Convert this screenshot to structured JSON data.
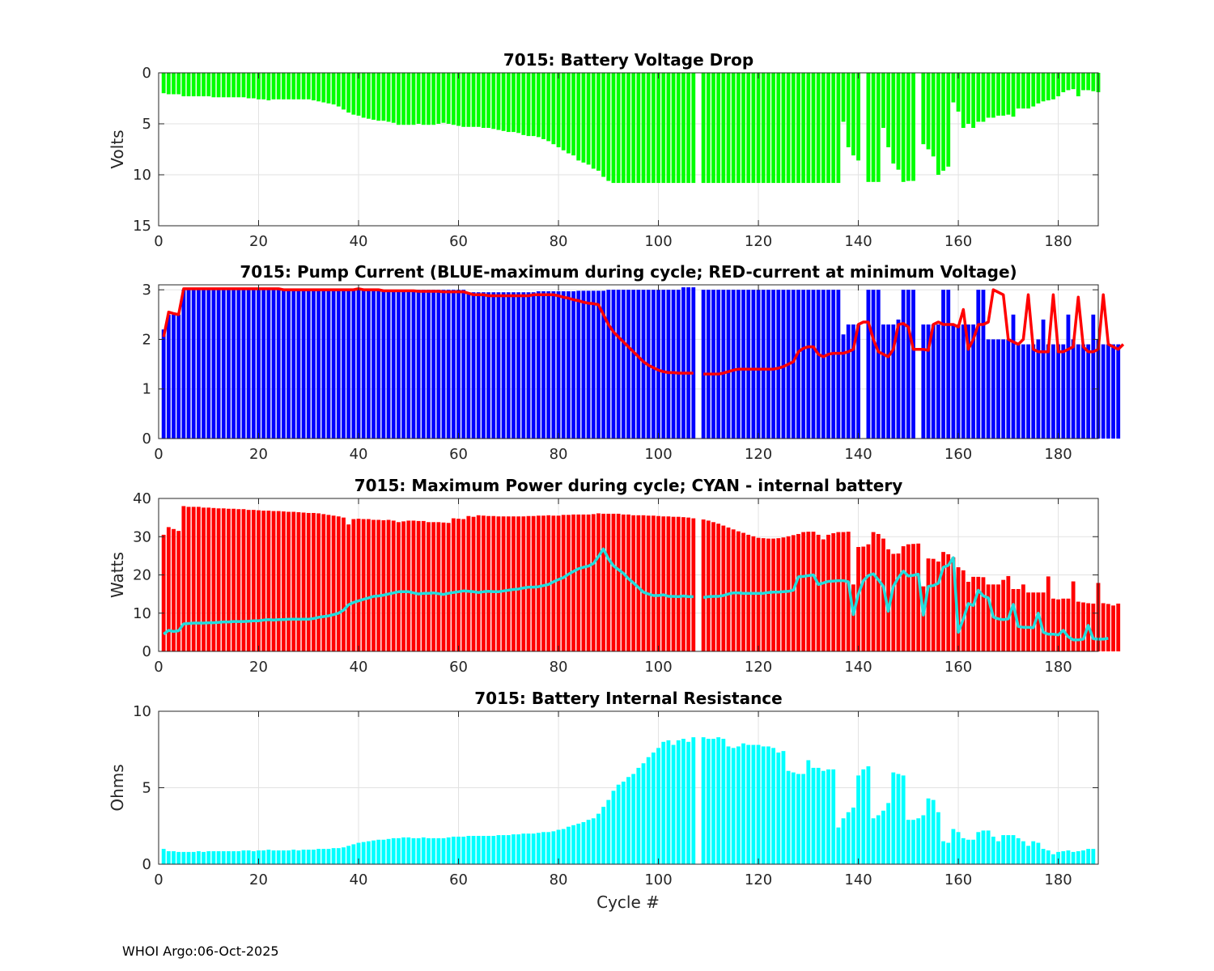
{
  "footer": "WHOI Argo:06-Oct-2025",
  "xlabel": "Cycle #",
  "colors": {
    "green": "#00ff00",
    "blue": "#0000ff",
    "red": "#ff0000",
    "cyan": "#00ffff",
    "line_cyan": "#22dddd"
  },
  "chart_data": [
    {
      "type": "bar",
      "title": "7015: Battery Voltage Drop",
      "ylabel": "Volts",
      "reversed_y": true,
      "xlim": [
        0,
        188
      ],
      "ylim": [
        0,
        15
      ],
      "xticks": [
        0,
        20,
        40,
        60,
        80,
        100,
        120,
        140,
        160,
        180
      ],
      "yticks": [
        0,
        5,
        10,
        15
      ],
      "x_first": 1,
      "color": "#00ff00",
      "values": [
        2.0,
        2.1,
        2.1,
        2.1,
        2.3,
        2.3,
        2.3,
        2.3,
        2.3,
        2.3,
        2.4,
        2.4,
        2.4,
        2.4,
        2.4,
        2.4,
        2.4,
        2.5,
        2.5,
        2.6,
        2.6,
        2.7,
        2.6,
        2.6,
        2.6,
        2.6,
        2.6,
        2.6,
        2.6,
        2.6,
        2.7,
        2.8,
        2.9,
        3.0,
        3.1,
        3.3,
        3.6,
        3.9,
        4.1,
        4.2,
        4.4,
        4.5,
        4.6,
        4.7,
        4.7,
        4.8,
        4.9,
        5.1,
        5.1,
        5.1,
        5.1,
        5.0,
        5.1,
        5.1,
        5.1,
        5.0,
        4.9,
        5.0,
        5.1,
        5.2,
        5.3,
        5.3,
        5.3,
        5.3,
        5.4,
        5.4,
        5.5,
        5.6,
        5.7,
        5.8,
        5.8,
        5.9,
        6.1,
        6.2,
        6.2,
        6.3,
        6.5,
        6.7,
        7.0,
        7.3,
        7.6,
        7.9,
        8.1,
        8.6,
        8.8,
        9.0,
        9.4,
        9.6,
        10.2,
        10.6,
        10.8,
        10.8,
        10.8,
        10.8,
        10.8,
        10.8,
        10.8,
        10.8,
        10.8,
        10.8,
        10.8,
        10.8,
        10.8,
        10.8,
        10.8,
        10.8,
        10.8,
        null,
        10.8,
        10.8,
        10.8,
        10.8,
        10.8,
        10.8,
        10.8,
        10.8,
        10.8,
        10.8,
        10.8,
        10.8,
        10.8,
        10.8,
        10.8,
        10.8,
        10.8,
        10.8,
        10.8,
        10.8,
        10.8,
        10.8,
        10.8,
        10.8,
        10.8,
        10.8,
        10.8,
        10.8,
        4.8,
        7.3,
        8.1,
        8.6,
        0,
        10.7,
        10.7,
        10.7,
        5.4,
        7.3,
        8.9,
        9.5,
        10.7,
        10.6,
        10.6,
        0,
        7.0,
        7.5,
        8.2,
        10.0,
        9.6,
        9.2,
        2.9,
        3.8,
        5.4,
        5.0,
        5.4,
        4.8,
        4.8,
        4.4,
        4.4,
        4.2,
        4.2,
        4.1,
        4.3,
        3.5,
        3.5,
        3.5,
        3.3,
        3.0,
        2.8,
        2.7,
        2.6,
        2.3,
        1.9,
        1.7,
        1.6,
        2.3,
        1.7,
        1.7,
        1.8,
        1.9
      ]
    },
    {
      "type": "bar+line",
      "title": "7015: Pump Current (BLUE-maximum during cycle; RED-current at minimum Voltage)",
      "ylabel": "",
      "xlim": [
        0,
        188
      ],
      "ylim": [
        0,
        3.1
      ],
      "xticks": [
        0,
        20,
        40,
        60,
        80,
        100,
        120,
        140,
        160,
        180
      ],
      "yticks": [
        0,
        1,
        2,
        3
      ],
      "x_first": 1,
      "bar_color": "#0000ff",
      "line_color": "#ff0000",
      "bar_name": "maximum during cycle",
      "line_name": "current at minimum Voltage",
      "values": [
        2.2,
        2.5,
        2.5,
        2.5,
        3.0,
        3.0,
        3.0,
        3.0,
        3.0,
        3.0,
        3.0,
        3.0,
        3.0,
        3.0,
        3.0,
        3.0,
        3.0,
        3.0,
        3.0,
        3.0,
        3.0,
        3.0,
        3.0,
        3.0,
        3.0,
        3.0,
        3.0,
        3.0,
        3.0,
        3.0,
        3.0,
        3.0,
        3.0,
        3.0,
        3.0,
        3.0,
        3.0,
        3.0,
        3.0,
        3.0,
        3.0,
        3.0,
        3.0,
        3.0,
        3.0,
        3.0,
        3.0,
        3.0,
        3.0,
        3.0,
        3.0,
        3.0,
        3.0,
        3.0,
        3.0,
        3.0,
        3.0,
        3.0,
        3.0,
        3.0,
        3.0,
        2.95,
        2.95,
        2.95,
        2.95,
        2.95,
        2.95,
        2.95,
        2.95,
        2.95,
        2.95,
        2.95,
        2.95,
        2.95,
        2.95,
        2.97,
        2.97,
        2.97,
        2.97,
        2.97,
        2.97,
        2.97,
        2.97,
        2.98,
        2.98,
        2.98,
        2.98,
        2.98,
        2.98,
        3.0,
        3.0,
        3.0,
        3.0,
        3.0,
        3.0,
        3.0,
        3.0,
        3.0,
        3.0,
        3.0,
        3.0,
        3.0,
        3.0,
        3.0,
        3.05,
        3.05,
        3.05,
        null,
        3.0,
        3.0,
        3.0,
        3.0,
        3.0,
        3.0,
        3.0,
        3.0,
        3.0,
        3.0,
        3.0,
        3.0,
        3.0,
        3.0,
        3.0,
        3.0,
        3.0,
        3.0,
        3.0,
        3.0,
        3.0,
        3.0,
        3.0,
        3.0,
        3.0,
        3.0,
        3.0,
        3.0,
        2.1,
        2.3,
        2.3,
        2.3,
        0,
        3.0,
        3.0,
        3.0,
        2.3,
        2.3,
        2.3,
        2.4,
        3.0,
        3.0,
        3.0,
        0,
        2.3,
        2.3,
        2.3,
        2.3,
        3.0,
        3.0,
        2.3,
        2.3,
        2.3,
        2.3,
        2.3,
        3.0,
        3.0,
        2.0,
        2.0,
        2.0,
        2.0,
        2.0,
        2.5,
        1.9,
        1.9,
        1.9,
        1.9,
        2.0,
        2.4,
        1.9,
        1.9,
        1.9,
        1.9,
        2.5,
        2.0,
        1.9,
        1.9,
        1.9,
        2.5,
        2.0,
        1.9,
        1.9,
        1.9,
        1.9
      ],
      "line": [
        2.05,
        2.55,
        2.52,
        2.5,
        3.02,
        3.02,
        3.02,
        3.02,
        3.02,
        3.02,
        3.02,
        3.02,
        3.02,
        3.02,
        3.02,
        3.02,
        3.02,
        3.02,
        3.02,
        3.02,
        3.02,
        3.02,
        3.02,
        3.02,
        3.0,
        3.0,
        3.0,
        3.0,
        3.0,
        3.0,
        3.0,
        3.0,
        3.0,
        3.0,
        3.0,
        3.0,
        3.0,
        3.0,
        3.0,
        3.02,
        3.0,
        3.0,
        3.0,
        3.0,
        2.98,
        2.98,
        2.98,
        2.98,
        2.98,
        2.98,
        2.98,
        2.97,
        2.97,
        2.97,
        2.97,
        2.97,
        2.96,
        2.96,
        2.96,
        2.96,
        2.96,
        2.93,
        2.9,
        2.9,
        2.9,
        2.88,
        2.88,
        2.88,
        2.88,
        2.88,
        2.88,
        2.88,
        2.88,
        2.88,
        2.9,
        2.9,
        2.9,
        2.9,
        2.9,
        2.88,
        2.85,
        2.83,
        2.8,
        2.78,
        2.75,
        2.73,
        2.72,
        2.7,
        2.5,
        2.3,
        2.15,
        2.05,
        1.95,
        1.85,
        1.75,
        1.65,
        1.55,
        1.48,
        1.43,
        1.38,
        1.35,
        1.33,
        1.33,
        1.32,
        1.32,
        1.32,
        1.32,
        null,
        1.3,
        1.3,
        1.3,
        1.3,
        1.32,
        1.35,
        1.38,
        1.4,
        1.4,
        1.4,
        1.4,
        1.4,
        1.4,
        1.4,
        1.4,
        1.42,
        1.45,
        1.5,
        1.55,
        1.75,
        1.82,
        1.85,
        1.85,
        1.7,
        1.65,
        1.7,
        1.72,
        1.72,
        1.72,
        1.75,
        1.8,
        2.3,
        2.35,
        2.35,
        2.0,
        1.75,
        1.7,
        1.65,
        1.8,
        2.3,
        2.32,
        2.25,
        1.8,
        1.8,
        1.8,
        1.78,
        2.3,
        2.35,
        2.3,
        2.3,
        2.3,
        2.25,
        2.6,
        1.8,
        2.0,
        2.3,
        2.3,
        2.35,
        3.0,
        2.95,
        2.9,
        2.0,
        1.95,
        1.9,
        2.0,
        2.9,
        1.8,
        1.75,
        1.75,
        1.75,
        2.9,
        1.75,
        1.75,
        1.8,
        1.85,
        2.85,
        1.85,
        1.75,
        1.75,
        1.8,
        2.9,
        1.9,
        1.85,
        1.8,
        1.9
      ]
    },
    {
      "type": "bar+line",
      "title": "7015: Maximum Power during cycle; CYAN - internal battery",
      "ylabel": "Watts",
      "xlim": [
        0,
        188
      ],
      "ylim": [
        0,
        40
      ],
      "xticks": [
        0,
        20,
        40,
        60,
        80,
        100,
        120,
        140,
        160,
        180
      ],
      "yticks": [
        0,
        10,
        20,
        30,
        40
      ],
      "x_first": 1,
      "bar_color": "#ff0000",
      "line_color": "#22dddd",
      "bar_name": "Maximum Power",
      "line_name": "internal battery",
      "values": [
        30.5,
        32.5,
        32,
        31.5,
        38,
        37.8,
        37.8,
        37.8,
        37.6,
        37.6,
        37.5,
        37.4,
        37.4,
        37.3,
        37.3,
        37.2,
        37.2,
        37,
        37,
        36.9,
        36.8,
        36.8,
        36.7,
        36.7,
        36.6,
        36.5,
        36.5,
        36.4,
        36.3,
        36.2,
        36.2,
        36.1,
        35.9,
        35.7,
        35.5,
        35.3,
        35,
        33.2,
        34.6,
        34.7,
        34.6,
        34.6,
        34.4,
        34.4,
        34.3,
        34.4,
        34.2,
        33.8,
        34.0,
        34.2,
        34.2,
        34.1,
        34.1,
        33.8,
        33.8,
        33.8,
        33.7,
        33.6,
        34.8,
        34.7,
        34.6,
        35.4,
        35.2,
        35.6,
        35.5,
        35.4,
        35.4,
        35.3,
        35.3,
        35.3,
        35.3,
        35.3,
        35.3,
        35.4,
        35.4,
        35.5,
        35.5,
        35.6,
        35.5,
        35.5,
        35.7,
        35.7,
        35.8,
        35.8,
        35.8,
        35.8,
        35.9,
        36.1,
        36,
        36,
        36,
        36,
        35.8,
        35.8,
        35.6,
        35.6,
        35.6,
        35.5,
        35.5,
        35.4,
        35.3,
        35.3,
        35.2,
        35.2,
        35.1,
        35,
        34.8,
        null,
        34.5,
        34.2,
        33.8,
        33.4,
        32.9,
        32.4,
        31.9,
        31.4,
        31,
        30.5,
        30.1,
        29.7,
        29.6,
        29.5,
        29.5,
        29.6,
        29.8,
        30.1,
        30.4,
        30.7,
        31.2,
        31.3,
        31.3,
        30.5,
        29.3,
        30.5,
        30.9,
        31.2,
        31.2,
        31.3,
        17.5,
        27.3,
        27.4,
        28,
        31.2,
        30.7,
        29.5,
        26.7,
        25.5,
        25.6,
        27.5,
        28,
        28.1,
        28.2,
        17,
        24.3,
        24.2,
        23.5,
        26,
        25.4,
        24.6,
        22,
        21.2,
        18.2,
        19.5,
        19.5,
        19.4,
        17.5,
        17.5,
        17.5,
        18.7,
        19.7,
        16.3,
        16.3,
        17.5,
        15.4,
        15.4,
        15.4,
        15.4,
        19.6,
        13.8,
        13.6,
        13.8,
        13.8,
        18.3,
        13,
        12.8,
        12.6,
        12.5,
        17.9,
        12.6,
        12.4,
        12,
        12.5
      ],
      "line": [
        4.5,
        5.5,
        5.2,
        5.4,
        7.2,
        7.3,
        7.4,
        7.4,
        7.4,
        7.5,
        7.5,
        7.6,
        7.7,
        7.7,
        7.8,
        7.8,
        7.8,
        7.9,
        8.0,
        8.0,
        8.2,
        8.3,
        8.2,
        8.3,
        8.3,
        8.4,
        8.4,
        8.4,
        8.4,
        8.4,
        8.6,
        8.9,
        9.1,
        9.3,
        9.6,
        10.0,
        10.8,
        12.2,
        12.8,
        13.2,
        13.6,
        14.0,
        14.4,
        14.5,
        14.7,
        15.0,
        15.3,
        15.6,
        15.6,
        15.6,
        15.3,
        15.0,
        15.2,
        15.2,
        15.3,
        15.1,
        14.9,
        15.2,
        15.4,
        15.6,
        15.8,
        15.7,
        15.6,
        15.4,
        15.6,
        15.7,
        15.6,
        15.6,
        15.8,
        16.0,
        16.2,
        16.3,
        16.6,
        16.8,
        16.8,
        16.9,
        17.2,
        17.5,
        18.2,
        18.8,
        19.3,
        20.2,
        20.9,
        21.6,
        22.0,
        22.3,
        23.0,
        24.8,
        26.8,
        24.2,
        22.4,
        21.4,
        20.4,
        19.0,
        17.9,
        16.7,
        15.5,
        15.0,
        14.6,
        14.6,
        14.8,
        14.4,
        14.4,
        14.3,
        14.5,
        14.3,
        14.3,
        null,
        14.1,
        14.3,
        14.4,
        14.4,
        14.6,
        15.0,
        15.3,
        15.3,
        15.2,
        15.2,
        15.2,
        15.2,
        15.2,
        15.4,
        15.5,
        15.5,
        15.6,
        15.7,
        16.0,
        19.5,
        19.6,
        19.8,
        20.0,
        17.5,
        17.9,
        18.3,
        18.4,
        18.5,
        18.5,
        18.2,
        9.6,
        15.0,
        18.5,
        19.8,
        20.3,
        18.7,
        17.0,
        10.5,
        17.0,
        19.3,
        21.0,
        19.7,
        19.9,
        20.2,
        9.5,
        17.0,
        17.2,
        17.8,
        22.0,
        22.5,
        24.5,
        5.0,
        8.5,
        12.5,
        12.0,
        16.0,
        14.5,
        14.0,
        9.0,
        8.5,
        8.3,
        8.5,
        12.3,
        6.5,
        6.3,
        6.3,
        6.2,
        10.0,
        5.0,
        4.5,
        4.5,
        4.3,
        5.5,
        3.8,
        3.0,
        3.0,
        3.2,
        6.8,
        3.3,
        3.2,
        3.2,
        3.4
      ]
    },
    {
      "type": "bar",
      "title": "7015: Battery Internal Resistance",
      "ylabel": "Ohms",
      "xlabel": "Cycle #",
      "xlim": [
        0,
        188
      ],
      "ylim": [
        0,
        10
      ],
      "xticks": [
        0,
        20,
        40,
        60,
        80,
        100,
        120,
        140,
        160,
        180
      ],
      "yticks": [
        0,
        5,
        10
      ],
      "x_first": 1,
      "color": "#00ffff",
      "values": [
        1.0,
        0.85,
        0.85,
        0.8,
        0.8,
        0.8,
        0.8,
        0.85,
        0.8,
        0.85,
        0.85,
        0.85,
        0.85,
        0.85,
        0.85,
        0.85,
        0.9,
        0.9,
        0.85,
        0.9,
        0.9,
        0.95,
        0.9,
        0.9,
        0.9,
        0.9,
        0.95,
        0.9,
        0.95,
        0.95,
        0.95,
        1.0,
        1.0,
        1.0,
        1.05,
        1.05,
        1.1,
        1.2,
        1.3,
        1.4,
        1.45,
        1.5,
        1.55,
        1.6,
        1.6,
        1.65,
        1.7,
        1.7,
        1.75,
        1.75,
        1.7,
        1.7,
        1.75,
        1.7,
        1.7,
        1.7,
        1.7,
        1.75,
        1.8,
        1.8,
        1.8,
        1.85,
        1.85,
        1.85,
        1.85,
        1.85,
        1.85,
        1.9,
        1.9,
        1.9,
        1.95,
        1.95,
        2.0,
        2.0,
        2.0,
        2.05,
        2.1,
        2.1,
        2.15,
        2.25,
        2.3,
        2.45,
        2.55,
        2.65,
        2.75,
        2.9,
        3.0,
        3.3,
        3.75,
        4.2,
        4.8,
        5.2,
        5.4,
        5.7,
        5.9,
        6.3,
        6.6,
        7.0,
        7.3,
        7.6,
        8.0,
        8.1,
        7.8,
        8.1,
        8.2,
        8.0,
        8.3,
        null,
        8.3,
        8.2,
        8.2,
        8.3,
        8.2,
        7.7,
        7.6,
        7.7,
        7.9,
        7.8,
        7.8,
        7.8,
        7.7,
        7.7,
        7.6,
        7.3,
        7.4,
        6.1,
        6.0,
        5.9,
        5.9,
        6.8,
        6.3,
        6.3,
        6.1,
        6.2,
        6.2,
        2.4,
        3.0,
        3.4,
        3.7,
        5.8,
        6.2,
        6.4,
        3.0,
        3.2,
        3.5,
        4.0,
        6.0,
        5.9,
        5.8,
        2.9,
        2.9,
        3.0,
        3.2,
        4.3,
        4.2,
        3.4,
        1.5,
        1.4,
        2.3,
        2.1,
        1.7,
        1.6,
        1.6,
        2.1,
        2.2,
        2.2,
        1.8,
        1.5,
        1.9,
        1.9,
        1.9,
        1.7,
        1.5,
        1.2,
        1.5,
        1.4,
        1.0,
        0.9,
        0.65,
        0.8,
        0.85,
        0.9,
        0.8,
        0.85,
        0.9,
        1.0,
        1.0
      ]
    }
  ]
}
